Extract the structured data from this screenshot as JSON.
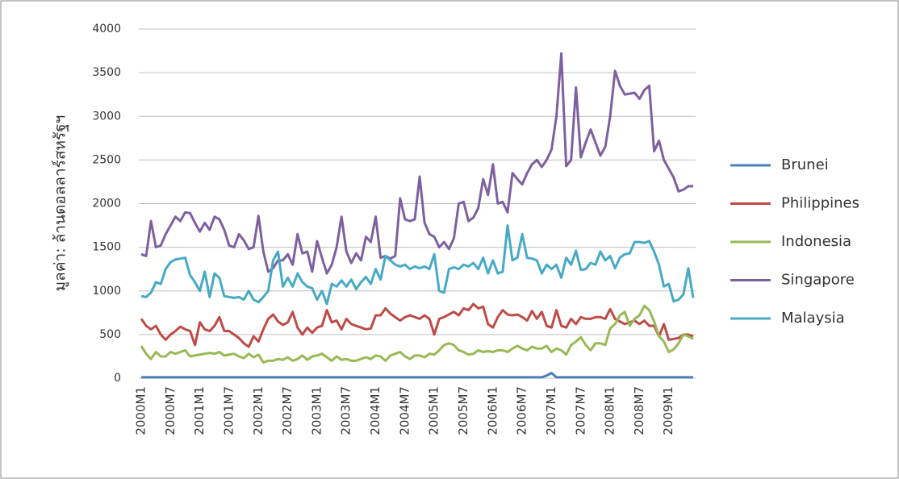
{
  "chart_data": {
    "type": "line",
    "y_label": "มูลค่า: ล้านดอลลาร์สหรัฐฯ",
    "categories": [
      "2000M1",
      null,
      null,
      null,
      null,
      null,
      "2000M7",
      null,
      null,
      null,
      null,
      null,
      "2001M1",
      null,
      null,
      null,
      null,
      null,
      "2001M7",
      null,
      null,
      null,
      null,
      null,
      "2002M1",
      null,
      null,
      null,
      null,
      null,
      "2002M7",
      null,
      null,
      null,
      null,
      null,
      "2003M1",
      null,
      null,
      null,
      null,
      null,
      "2003M7",
      null,
      null,
      null,
      null,
      null,
      "2004M1",
      null,
      null,
      null,
      null,
      null,
      "2004M7",
      null,
      null,
      null,
      null,
      null,
      "2005M1",
      null,
      null,
      null,
      null,
      null,
      "2005M7",
      null,
      null,
      null,
      null,
      null,
      "2006M1",
      null,
      null,
      null,
      null,
      null,
      "2006M7",
      null,
      null,
      null,
      null,
      null,
      "2007M1",
      null,
      null,
      null,
      null,
      null,
      "2007M7",
      null,
      null,
      null,
      null,
      null,
      "2008M1",
      null,
      null,
      null,
      null,
      null,
      "2008M7",
      null,
      null,
      null,
      null,
      null,
      "2009M1",
      null,
      null,
      null,
      null,
      null
    ],
    "series": [
      {
        "name": "Brunei",
        "color": "#4a7ebb",
        "values": [
          10,
          10,
          10,
          10,
          10,
          10,
          10,
          10,
          10,
          10,
          10,
          10,
          10,
          10,
          10,
          10,
          10,
          10,
          10,
          10,
          10,
          10,
          10,
          10,
          10,
          10,
          10,
          10,
          10,
          10,
          10,
          10,
          10,
          10,
          10,
          10,
          10,
          10,
          10,
          10,
          10,
          10,
          10,
          10,
          10,
          10,
          10,
          10,
          10,
          10,
          10,
          10,
          10,
          10,
          10,
          10,
          10,
          10,
          10,
          10,
          10,
          10,
          10,
          10,
          10,
          10,
          10,
          10,
          10,
          10,
          10,
          10,
          10,
          10,
          10,
          10,
          10,
          10,
          10,
          10,
          10,
          10,
          10,
          30,
          60,
          10,
          10,
          10,
          10,
          10,
          10,
          10,
          10,
          10,
          10,
          10,
          10,
          10,
          10,
          10,
          10,
          10,
          10,
          10,
          10,
          10,
          10,
          10,
          10,
          10,
          10,
          10,
          10,
          10
        ]
      },
      {
        "name": "Philippines",
        "color": "#be4b48",
        "values": [
          680,
          600,
          560,
          600,
          500,
          440,
          500,
          540,
          590,
          560,
          540,
          380,
          640,
          560,
          540,
          600,
          700,
          540,
          540,
          500,
          460,
          400,
          360,
          480,
          420,
          560,
          680,
          730,
          650,
          610,
          640,
          760,
          580,
          500,
          580,
          520,
          580,
          600,
          780,
          640,
          660,
          560,
          680,
          620,
          600,
          580,
          560,
          570,
          720,
          720,
          800,
          740,
          700,
          660,
          700,
          720,
          700,
          680,
          720,
          680,
          500,
          680,
          700,
          730,
          760,
          720,
          800,
          780,
          850,
          800,
          820,
          620,
          580,
          700,
          780,
          730,
          720,
          730,
          700,
          660,
          770,
          680,
          760,
          600,
          580,
          780,
          600,
          580,
          680,
          620,
          700,
          680,
          680,
          700,
          700,
          680,
          790,
          680,
          650,
          620,
          640,
          660,
          620,
          660,
          600,
          600,
          480,
          620,
          440,
          450,
          460,
          500,
          500,
          480
        ]
      },
      {
        "name": "Indonesia",
        "color": "#98b954",
        "values": [
          370,
          280,
          220,
          300,
          250,
          250,
          300,
          280,
          300,
          320,
          250,
          260,
          270,
          280,
          290,
          280,
          300,
          260,
          270,
          280,
          250,
          230,
          280,
          240,
          270,
          180,
          200,
          200,
          220,
          210,
          240,
          200,
          220,
          260,
          210,
          250,
          260,
          280,
          240,
          200,
          250,
          210,
          220,
          200,
          200,
          220,
          240,
          220,
          260,
          250,
          200,
          260,
          280,
          300,
          250,
          220,
          260,
          260,
          240,
          280,
          270,
          320,
          380,
          400,
          380,
          320,
          300,
          270,
          280,
          320,
          300,
          310,
          300,
          320,
          320,
          300,
          340,
          370,
          340,
          320,
          360,
          340,
          340,
          370,
          300,
          340,
          320,
          270,
          380,
          420,
          470,
          380,
          320,
          400,
          400,
          380,
          570,
          620,
          720,
          760,
          600,
          680,
          720,
          830,
          780,
          650,
          480,
          420,
          300,
          330,
          400,
          500,
          480,
          450
        ]
      },
      {
        "name": "Singapore",
        "color": "#7d60a0",
        "values": [
          1420,
          1400,
          1800,
          1500,
          1520,
          1650,
          1750,
          1850,
          1800,
          1900,
          1890,
          1780,
          1680,
          1780,
          1700,
          1850,
          1820,
          1700,
          1520,
          1500,
          1650,
          1580,
          1480,
          1500,
          1860,
          1450,
          1220,
          1260,
          1350,
          1350,
          1420,
          1300,
          1650,
          1430,
          1450,
          1220,
          1570,
          1380,
          1200,
          1300,
          1500,
          1850,
          1450,
          1320,
          1430,
          1350,
          1620,
          1560,
          1850,
          1380,
          1400,
          1370,
          1400,
          2060,
          1820,
          1800,
          1820,
          2310,
          1780,
          1650,
          1620,
          1500,
          1560,
          1480,
          1600,
          2000,
          2020,
          1800,
          1840,
          1950,
          2280,
          2100,
          2450,
          2000,
          2020,
          1900,
          2350,
          2280,
          2220,
          2350,
          2450,
          2500,
          2420,
          2500,
          2620,
          3000,
          3720,
          2430,
          2500,
          3330,
          2530,
          2700,
          2850,
          2700,
          2550,
          2650,
          3000,
          3520,
          3350,
          3250,
          3260,
          3270,
          3200,
          3300,
          3350,
          2600,
          2720,
          2500,
          2400,
          2300,
          2140,
          2160,
          2200,
          2200
        ]
      },
      {
        "name": "Malaysia",
        "color": "#46aac5",
        "values": [
          940,
          930,
          980,
          1100,
          1080,
          1250,
          1330,
          1360,
          1370,
          1380,
          1180,
          1100,
          1000,
          1220,
          930,
          1200,
          1150,
          940,
          930,
          920,
          930,
          900,
          1000,
          900,
          870,
          930,
          1000,
          1350,
          1450,
          1050,
          1150,
          1050,
          1200,
          1100,
          1050,
          1030,
          900,
          1000,
          850,
          1080,
          1050,
          1120,
          1050,
          1130,
          1020,
          1100,
          1160,
          1080,
          1250,
          1130,
          1400,
          1350,
          1300,
          1280,
          1300,
          1250,
          1280,
          1260,
          1280,
          1250,
          1420,
          1000,
          980,
          1250,
          1270,
          1250,
          1300,
          1280,
          1320,
          1250,
          1380,
          1200,
          1350,
          1200,
          1220,
          1750,
          1350,
          1380,
          1650,
          1380,
          1370,
          1350,
          1200,
          1300,
          1250,
          1300,
          1150,
          1380,
          1300,
          1460,
          1240,
          1250,
          1320,
          1300,
          1450,
          1350,
          1400,
          1260,
          1380,
          1420,
          1430,
          1560,
          1560,
          1550,
          1570,
          1450,
          1300,
          1050,
          1080,
          880,
          900,
          960,
          1260,
          920
        ]
      }
    ],
    "ylim": [
      0,
      4000
    ],
    "yticks": [
      0,
      500,
      1000,
      1500,
      2000,
      2500,
      3000,
      3500,
      4000
    ],
    "grid": true,
    "legend": "right"
  }
}
